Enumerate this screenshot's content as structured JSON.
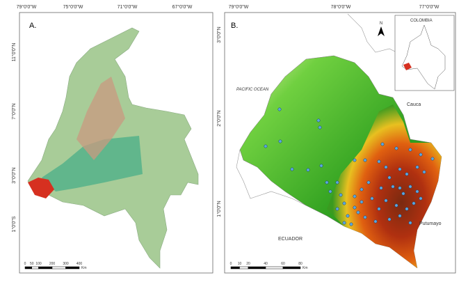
{
  "panels": [
    {
      "label": "A.",
      "lon_labels": [
        "79°0'0\"W",
        "75°0'0\"W",
        "71°0'0\"W",
        "67°0'0\"W"
      ],
      "lat_labels": [
        "11°0'0\"N",
        "7°0'0\"N",
        "3°0'0\"N",
        "1°0'0\"S"
      ],
      "scale_bar": {
        "ticks": [
          0,
          50,
          100,
          200,
          300,
          400
        ],
        "unit": "Km"
      }
    },
    {
      "label": "B.",
      "lon_labels": [
        "79°0'0\"W",
        "78°0'0\"W",
        "77°0'0\"W"
      ],
      "lat_labels": [
        "3°0'0\"N",
        "2°0'0\"N",
        "1°0'0\"N"
      ],
      "scale_bar": {
        "ticks": [
          0,
          10,
          20,
          40,
          60,
          80
        ],
        "unit": "Km"
      },
      "places": {
        "ocean": "PACIFIC OCEAN",
        "cauca": "Cauca",
        "ecuador": "ECUADOR",
        "putumayo": "Putumayo"
      },
      "inset_title": "COLOMBIA",
      "north": "N"
    }
  ]
}
